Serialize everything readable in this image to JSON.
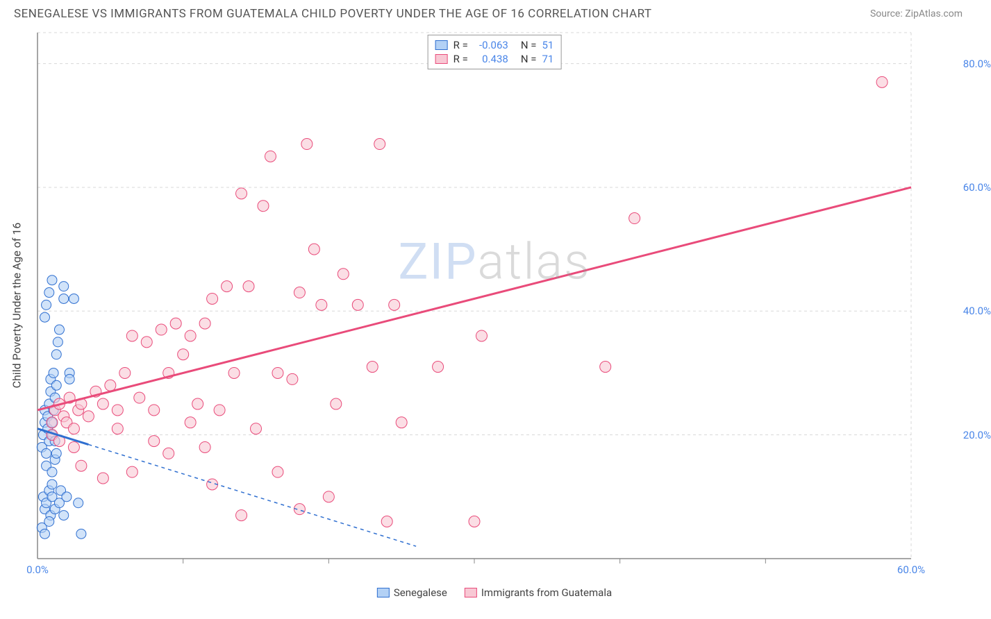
{
  "header": {
    "title": "SENEGALESE VS IMMIGRANTS FROM GUATEMALA CHILD POVERTY UNDER THE AGE OF 16 CORRELATION CHART",
    "source": "Source: ZipAtlas.com"
  },
  "ylabel": "Child Poverty Under the Age of 16",
  "watermark": {
    "part1": "ZIP",
    "part2": "atlas"
  },
  "xlim": [
    0,
    60
  ],
  "ylim": [
    0,
    85
  ],
  "yticks": [
    {
      "v": 20,
      "label": "20.0%"
    },
    {
      "v": 40,
      "label": "40.0%"
    },
    {
      "v": 60,
      "label": "60.0%"
    },
    {
      "v": 80,
      "label": "80.0%"
    }
  ],
  "xticks": [
    {
      "v": 0,
      "label": "0.0%"
    },
    {
      "v": 60,
      "label": "60.0%"
    }
  ],
  "x_minor_ticks": [
    10,
    20,
    30,
    40,
    50
  ],
  "grid_color": "#d8d8d8",
  "axis_color": "#888888",
  "background_color": "#ffffff",
  "tick_label_color": "#4a86e8",
  "series": [
    {
      "key": "senegalese",
      "label": "Senegalese",
      "fill": "#b3d1f5",
      "stroke": "#2f6fd0",
      "marker_radius": 7,
      "r_value": "-0.063",
      "n_value": "51",
      "trend": {
        "x1": 0,
        "y1": 21,
        "x2": 26,
        "y2": 2,
        "solid_until_x": 3.5
      },
      "points": [
        [
          0.3,
          18
        ],
        [
          0.4,
          20
        ],
        [
          0.5,
          22
        ],
        [
          0.5,
          24
        ],
        [
          0.6,
          15
        ],
        [
          0.6,
          17
        ],
        [
          0.7,
          21
        ],
        [
          0.7,
          23
        ],
        [
          0.8,
          19
        ],
        [
          0.8,
          25
        ],
        [
          0.9,
          27
        ],
        [
          0.9,
          29
        ],
        [
          1.0,
          20
        ],
        [
          1.0,
          22
        ],
        [
          1.1,
          24
        ],
        [
          1.1,
          30
        ],
        [
          1.2,
          19
        ],
        [
          1.2,
          26
        ],
        [
          1.3,
          28
        ],
        [
          1.3,
          33
        ],
        [
          1.4,
          35
        ],
        [
          1.5,
          37
        ],
        [
          0.5,
          39
        ],
        [
          0.6,
          41
        ],
        [
          0.8,
          43
        ],
        [
          1.0,
          45
        ],
        [
          1.8,
          42
        ],
        [
          1.8,
          44
        ],
        [
          2.2,
          30
        ],
        [
          2.2,
          29
        ],
        [
          2.5,
          42
        ],
        [
          0.4,
          10
        ],
        [
          0.5,
          8
        ],
        [
          0.6,
          9
        ],
        [
          0.8,
          11
        ],
        [
          0.9,
          7
        ],
        [
          1.0,
          10
        ],
        [
          1.2,
          8
        ],
        [
          1.5,
          9
        ],
        [
          1.6,
          11
        ],
        [
          1.8,
          7
        ],
        [
          2.0,
          10
        ],
        [
          0.3,
          5
        ],
        [
          0.5,
          4
        ],
        [
          0.8,
          6
        ],
        [
          1.0,
          12
        ],
        [
          1.0,
          14
        ],
        [
          1.2,
          16
        ],
        [
          1.3,
          17
        ],
        [
          2.8,
          9
        ],
        [
          3.0,
          4
        ]
      ]
    },
    {
      "key": "guatemala",
      "label": "Immigrants from Guatemala",
      "fill": "#f8c8d4",
      "stroke": "#e94b7a",
      "marker_radius": 8,
      "r_value": "0.438",
      "n_value": "71",
      "trend": {
        "x1": 0,
        "y1": 24,
        "x2": 60,
        "y2": 60,
        "solid_until_x": 60
      },
      "points": [
        [
          1.0,
          22
        ],
        [
          1.2,
          24
        ],
        [
          1.5,
          25
        ],
        [
          1.8,
          23
        ],
        [
          2.0,
          22
        ],
        [
          2.2,
          26
        ],
        [
          2.5,
          21
        ],
        [
          2.8,
          24
        ],
        [
          3.0,
          25
        ],
        [
          3.5,
          23
        ],
        [
          4.0,
          27
        ],
        [
          4.5,
          25
        ],
        [
          5.0,
          28
        ],
        [
          5.5,
          24
        ],
        [
          6.0,
          30
        ],
        [
          6.5,
          36
        ],
        [
          7.0,
          26
        ],
        [
          7.5,
          35
        ],
        [
          8.0,
          24
        ],
        [
          8.5,
          37
        ],
        [
          9.0,
          30
        ],
        [
          9.5,
          38
        ],
        [
          10.0,
          33
        ],
        [
          10.5,
          36
        ],
        [
          11.0,
          25
        ],
        [
          11.5,
          38
        ],
        [
          12.0,
          42
        ],
        [
          12.5,
          24
        ],
        [
          13.0,
          44
        ],
        [
          13.5,
          30
        ],
        [
          14.0,
          59
        ],
        [
          14.5,
          44
        ],
        [
          15.0,
          21
        ],
        [
          15.5,
          57
        ],
        [
          16.0,
          65
        ],
        [
          16.5,
          30
        ],
        [
          17.5,
          29
        ],
        [
          18.0,
          43
        ],
        [
          18.5,
          67
        ],
        [
          19.0,
          50
        ],
        [
          19.5,
          41
        ],
        [
          20.5,
          25
        ],
        [
          21.0,
          46
        ],
        [
          22.0,
          41
        ],
        [
          23.0,
          31
        ],
        [
          23.5,
          67
        ],
        [
          24.5,
          41
        ],
        [
          25.0,
          22
        ],
        [
          27.5,
          31
        ],
        [
          30.0,
          6
        ],
        [
          30.5,
          36
        ],
        [
          39.0,
          31
        ],
        [
          41.0,
          55
        ],
        [
          58.0,
          77
        ],
        [
          1.0,
          20
        ],
        [
          1.5,
          19
        ],
        [
          2.5,
          18
        ],
        [
          5.5,
          21
        ],
        [
          8.0,
          19
        ],
        [
          9.0,
          17
        ],
        [
          10.5,
          22
        ],
        [
          11.5,
          18
        ],
        [
          3.0,
          15
        ],
        [
          4.5,
          13
        ],
        [
          6.5,
          14
        ],
        [
          12.0,
          12
        ],
        [
          14.0,
          7
        ],
        [
          16.5,
          14
        ],
        [
          18.0,
          8
        ],
        [
          20.0,
          10
        ],
        [
          24.0,
          6
        ]
      ]
    }
  ],
  "legend_top": {
    "r_label": "R =",
    "n_label": "N =",
    "text_color": "#333333",
    "value_color": "#4a86e8"
  },
  "legend_bottom_text_color": "#444444"
}
